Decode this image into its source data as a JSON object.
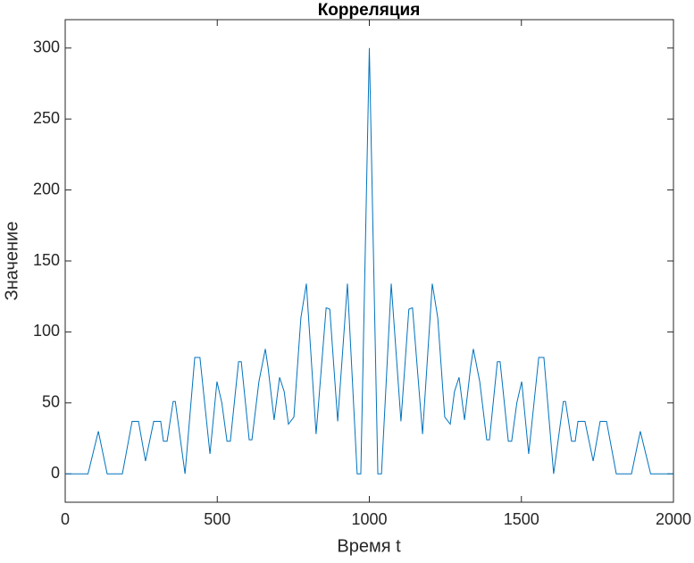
{
  "chart_data": {
    "type": "line",
    "title": "Корреляция",
    "x_label": "Время t",
    "y_label": "Значение",
    "xlim": [
      0,
      2000
    ],
    "xticks": [
      0,
      500,
      1000,
      1500,
      2000
    ],
    "ylim": [
      -20,
      320
    ],
    "yticks": [
      0,
      50,
      100,
      150,
      200,
      250,
      300
    ],
    "series": [
      {
        "color": "#0072bd",
        "x": [
          0,
          75,
          109,
          138,
          188,
          220,
          241,
          264,
          291,
          314,
          323,
          335,
          355,
          362,
          394,
          426,
          443,
          476,
          499,
          515,
          532,
          543,
          570,
          579,
          605,
          614,
          637,
          658,
          667,
          687,
          705,
          720,
          734,
          752,
          775,
          793,
          825,
          858,
          870,
          896,
          928,
          960,
          972,
          1000,
          1028,
          1040,
          1072,
          1104,
          1130,
          1142,
          1175,
          1207,
          1225,
          1248,
          1266,
          1280,
          1295,
          1313,
          1333,
          1342,
          1363,
          1386,
          1395,
          1421,
          1430,
          1457,
          1468,
          1485,
          1501,
          1524,
          1557,
          1574,
          1606,
          1638,
          1645,
          1665,
          1677,
          1686,
          1709,
          1736,
          1759,
          1780,
          1812,
          1862,
          1891,
          1925,
          2000
        ],
        "values": [
          0,
          0,
          30,
          0,
          0,
          37,
          37,
          9,
          37,
          37,
          23,
          23,
          51,
          51,
          0,
          82,
          82,
          14,
          65,
          50,
          23,
          23,
          79,
          79,
          24,
          24,
          65,
          88,
          75,
          38,
          68,
          58,
          35,
          40,
          110,
          134,
          28,
          117,
          116,
          37,
          134,
          0,
          0,
          300,
          0,
          0,
          134,
          37,
          116,
          117,
          28,
          134,
          110,
          40,
          35,
          58,
          68,
          38,
          75,
          88,
          65,
          24,
          24,
          79,
          79,
          23,
          23,
          50,
          65,
          14,
          82,
          82,
          0,
          51,
          51,
          23,
          23,
          37,
          37,
          9,
          37,
          37,
          0,
          0,
          30,
          0,
          0
        ]
      }
    ]
  }
}
